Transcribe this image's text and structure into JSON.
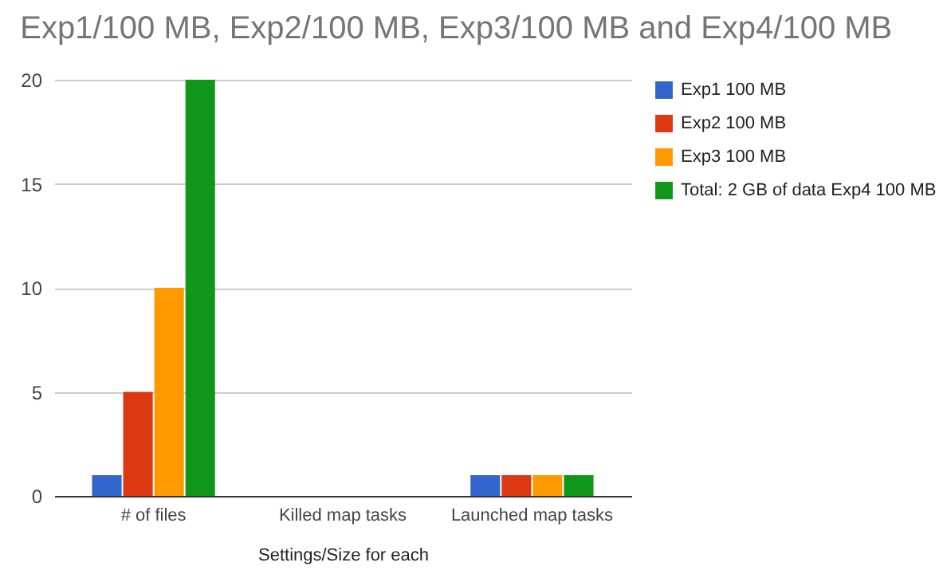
{
  "chart_data": {
    "type": "bar",
    "title": "Exp1/100 MB, Exp2/100 MB, Exp3/100 MB and Exp4/100 MB",
    "xlabel": "Settings/Size for each",
    "categories": [
      "# of files",
      "Killed map tasks",
      "Launched map tasks"
    ],
    "series": [
      {
        "name": "Exp1 100 MB",
        "color": "#3366cc",
        "values": [
          1,
          0,
          1
        ]
      },
      {
        "name": "Exp2 100 MB",
        "color": "#dc3912",
        "values": [
          5,
          0,
          1
        ]
      },
      {
        "name": "Exp3 100 MB",
        "color": "#ff9900",
        "values": [
          10,
          0,
          1
        ]
      },
      {
        "name": "Total: 2 GB of data Exp4 100 MB",
        "color": "#109618",
        "values": [
          20,
          0,
          1
        ]
      }
    ],
    "ylim": [
      0,
      20
    ],
    "yticks": [
      0,
      5,
      10,
      15,
      20
    ],
    "grid": "y",
    "legend": "right"
  }
}
